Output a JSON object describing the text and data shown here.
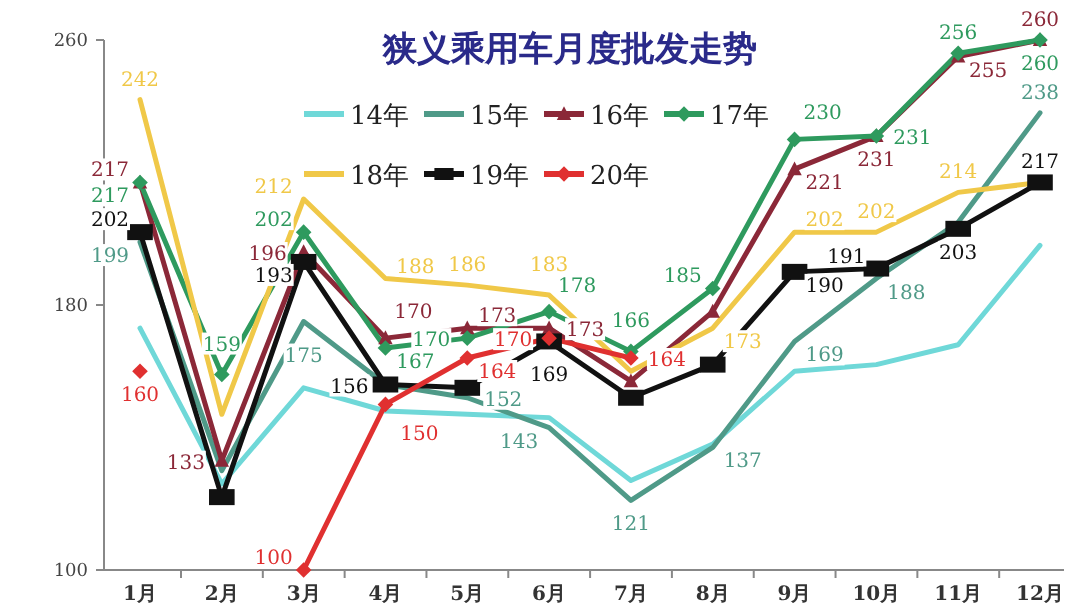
{
  "chart_data": {
    "type": "line",
    "title": "狭义乘用车月度批发走势",
    "categories": [
      "1月",
      "2月",
      "3月",
      "4月",
      "5月",
      "6月",
      "7月",
      "8月",
      "9月",
      "10月",
      "11月",
      "12月"
    ],
    "ylim": [
      100,
      260
    ],
    "yticks": [
      100,
      180,
      260
    ],
    "grid": false,
    "legend": "top",
    "series": [
      {
        "name": "14年",
        "color": "#6fd8d8",
        "marker": "none",
        "values": [
          173,
          126,
          155,
          148,
          147,
          146,
          127,
          138,
          160,
          162,
          168,
          198
        ]
      },
      {
        "name": "15年",
        "color": "#4f9a88",
        "marker": "none",
        "values": [
          199,
          130,
          175,
          156,
          152,
          143,
          121,
          137,
          169,
          188,
          205,
          238
        ],
        "value_labels": [
          "199",
          null,
          "175",
          null,
          "152",
          "143",
          "121",
          "137",
          "169",
          "188",
          null,
          "238"
        ]
      },
      {
        "name": "16年",
        "color": "#8b2838",
        "marker": "triangle",
        "values": [
          217,
          133,
          196,
          170,
          173,
          173,
          157,
          178,
          221,
          231,
          255,
          260
        ],
        "value_labels": [
          "217",
          "133",
          "196",
          "170",
          "173",
          "173",
          null,
          null,
          "221",
          "231",
          "255",
          "260"
        ]
      },
      {
        "name": "17年",
        "color": "#2e9a5e",
        "marker": "diamond",
        "values": [
          217,
          159,
          202,
          167,
          170,
          178,
          166,
          185,
          230,
          231,
          256,
          260
        ],
        "value_labels": [
          "217",
          "159",
          "202",
          "167",
          "170",
          "178",
          "166",
          "185",
          "230",
          "231",
          "256",
          "260"
        ]
      },
      {
        "name": "18年",
        "color": "#f0c848",
        "marker": "none",
        "values": [
          242,
          147,
          212,
          188,
          186,
          183,
          160,
          173,
          202,
          202,
          214,
          217
        ],
        "value_labels": [
          "242",
          null,
          "212",
          "188",
          "186",
          "183",
          null,
          "173",
          "202",
          "202",
          "214",
          null
        ]
      },
      {
        "name": "19年",
        "color": "#111111",
        "marker": "square",
        "values": [
          202,
          122,
          193,
          156,
          155,
          169,
          152,
          162,
          190,
          191,
          203,
          217
        ],
        "value_labels": [
          "202",
          null,
          "193",
          "156",
          null,
          "169",
          null,
          null,
          "190",
          "191",
          "203",
          "217"
        ]
      },
      {
        "name": "20年",
        "color": "#e03030",
        "marker": "diamond",
        "values": [
          160,
          null,
          100,
          150,
          164,
          170,
          164,
          null,
          null,
          null,
          null,
          null
        ],
        "value_labels": [
          "160",
          null,
          "100",
          "150",
          "164",
          "170",
          "164",
          null,
          null,
          null,
          null,
          null
        ]
      }
    ]
  }
}
